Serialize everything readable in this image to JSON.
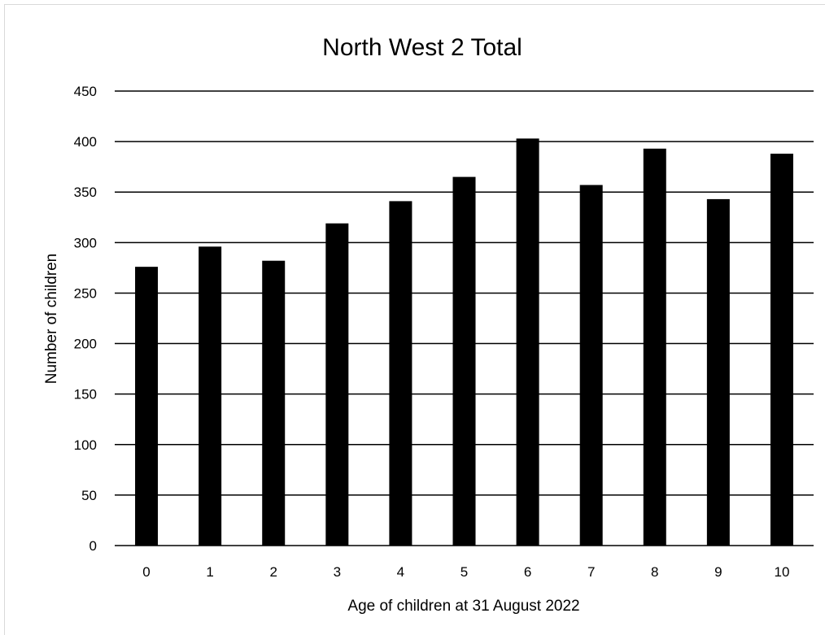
{
  "chart_data": {
    "type": "bar",
    "title": "North West 2 Total",
    "xlabel": "Age of children at 31 August 2022",
    "ylabel": "Number of children",
    "categories": [
      "0",
      "1",
      "2",
      "3",
      "4",
      "5",
      "6",
      "7",
      "8",
      "9",
      "10"
    ],
    "values": [
      276,
      296,
      282,
      319,
      341,
      365,
      403,
      357,
      393,
      343,
      388
    ],
    "ylim": [
      0,
      450
    ],
    "yticks": [
      0,
      50,
      100,
      150,
      200,
      250,
      300,
      350,
      400,
      450
    ],
    "grid": true,
    "legend": "none",
    "bar_color": "#000000",
    "grid_color": "#000000"
  }
}
